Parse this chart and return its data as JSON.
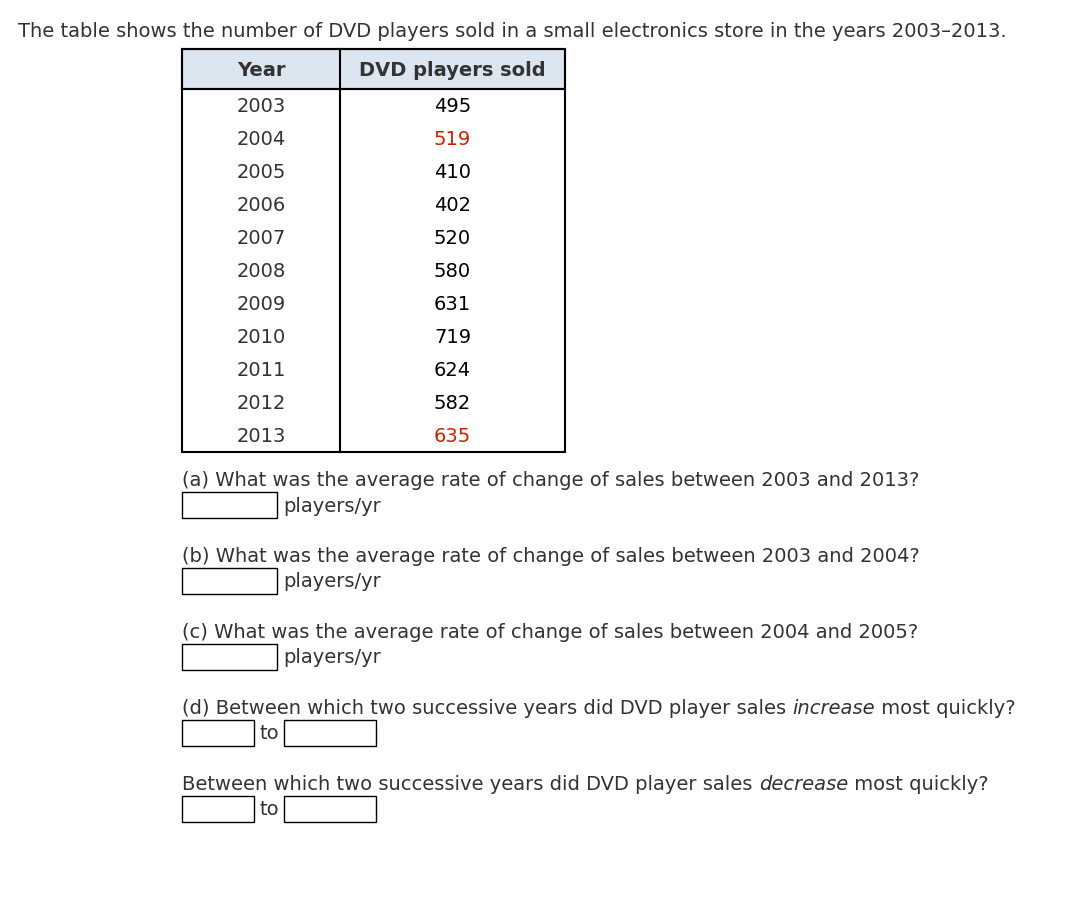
{
  "title": "The table shows the number of DVD players sold in a small electronics store in the years 2003–2013.",
  "years": [
    "2003",
    "2004",
    "2005",
    "2006",
    "2007",
    "2008",
    "2009",
    "2010",
    "2011",
    "2012",
    "2013"
  ],
  "sales": [
    "495",
    "519",
    "410",
    "402",
    "520",
    "580",
    "631",
    "719",
    "624",
    "582",
    "635"
  ],
  "sales_colors": [
    "#000000",
    "#cc2200",
    "#000000",
    "#000000",
    "#000000",
    "#000000",
    "#000000",
    "#000000",
    "#000000",
    "#000000",
    "#cc2200"
  ],
  "col1_header": "Year",
  "col2_header": "DVD players sold",
  "header_bg": "#dce6f1",
  "bg_color": "#ffffff",
  "text_color": "#333333",
  "title_fontsize": 14,
  "table_fontsize": 14,
  "question_fontsize": 14,
  "players_yr_label": "players/yr",
  "to_label": "to",
  "q_a": "(a) What was the average rate of change of sales between 2003 and 2013?",
  "q_b": "(b) What was the average rate of change of sales between 2003 and 2004?",
  "q_c": "(c) What was the average rate of change of sales between 2004 and 2005?",
  "q_d_pre": "(d) Between which two successive years did DVD player sales ",
  "q_d_italic": "increase",
  "q_d_post": " most quickly?",
  "q_e_pre": "Between which two successive years did DVD player sales ",
  "q_e_italic": "decrease",
  "q_e_post": " most quickly?"
}
